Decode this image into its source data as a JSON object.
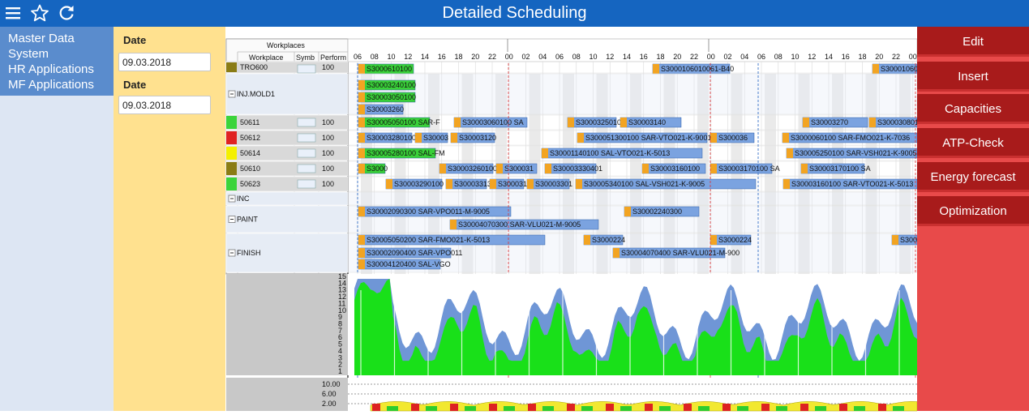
{
  "app": {
    "title": "Detailed Scheduling"
  },
  "toolbar": {
    "menu_icon": "menu-icon",
    "favorite_icon": "star-icon",
    "refresh_icon": "refresh-icon"
  },
  "sidebar": {
    "items": [
      {
        "label": "Master Data"
      },
      {
        "label": "System"
      },
      {
        "label": "HR Applications"
      },
      {
        "label": "MF Applications"
      }
    ]
  },
  "dates": {
    "from_label": "Date",
    "from_value": "09.03.2018",
    "to_label": "Date",
    "to_value": "09.03.2018"
  },
  "actions": [
    {
      "label": "Edit"
    },
    {
      "label": "Insert"
    },
    {
      "label": "Capacities"
    },
    {
      "label": "ATP-Check"
    },
    {
      "label": "Energy forecast"
    },
    {
      "label": "Optimization"
    }
  ],
  "grid": {
    "header_group": "Workplaces",
    "col_workplace": "Workplace",
    "col_symbol": "Symb",
    "col_perf": "Perform",
    "hours": [
      "06",
      "08",
      "10",
      "12",
      "14",
      "16",
      "18",
      "20",
      "22",
      "00",
      "02",
      "04",
      "06",
      "08",
      "10",
      "12",
      "14",
      "16",
      "18",
      "20",
      "22",
      "00",
      "02",
      "04",
      "06",
      "08",
      "10",
      "12",
      "14",
      "16",
      "18",
      "20",
      "22",
      "00"
    ],
    "rows": [
      {
        "id": "TRO600",
        "name": "TRO600",
        "status": "#8a7c15",
        "perf": "100",
        "y": 76,
        "h": 14,
        "bars": [
          {
            "s": 442,
            "e": 510,
            "c": "#39d039",
            "t": "S3000610100"
          },
          {
            "s": 805,
            "e": 900,
            "c": "#7ba3e0",
            "t": "S3000106010061-B40"
          },
          {
            "s": 1076,
            "e": 1131,
            "c": "#7ba3e0",
            "t": "S3000106010"
          }
        ]
      },
      {
        "id": "INJ.MOLD1",
        "name": "INJ.MOLD1",
        "status": "",
        "perf": "",
        "y": 91,
        "h": 50,
        "group": true,
        "bars": [
          {
            "s": 442,
            "e": 512,
            "c": "#39d039",
            "t": "S30003240100",
            "y": 8
          },
          {
            "s": 442,
            "e": 512,
            "c": "#39d039",
            "t": "S30003050100",
            "y": 23
          },
          {
            "s": 442,
            "e": 497,
            "c": "#7ba3e0",
            "t": "S30003260",
            "y": 38
          }
        ]
      },
      {
        "id": "50611",
        "name": "50611",
        "status": "#3bd43b",
        "perf": "100",
        "y": 142,
        "h": 18,
        "bars": [
          {
            "s": 442,
            "e": 530,
            "c": "#39d039",
            "t": "S30005050100 SAR-F"
          },
          {
            "s": 560,
            "e": 650,
            "c": "#7ba3e0",
            "t": "S30003060100 SA"
          },
          {
            "s": 700,
            "e": 760,
            "c": "#7ba3e0",
            "t": "S30003250101"
          },
          {
            "s": 765,
            "e": 840,
            "c": "#7ba3e0",
            "t": "S30003140"
          },
          {
            "s": 990,
            "e": 1070,
            "c": "#7ba3e0",
            "t": "S30003270"
          },
          {
            "s": 1072,
            "e": 1131,
            "c": "#7ba3e0",
            "t": "S30003080100"
          }
        ]
      },
      {
        "id": "50612",
        "name": "50612",
        "status": "#e02222",
        "perf": "100",
        "y": 161,
        "h": 18,
        "bars": [
          {
            "s": 442,
            "e": 508,
            "c": "#7ba3e0",
            "t": "S30003280100"
          },
          {
            "s": 512,
            "e": 552,
            "c": "#7ba3e0",
            "t": "S30003"
          },
          {
            "s": 556,
            "e": 610,
            "c": "#7ba3e0",
            "t": "S30003120"
          },
          {
            "s": 712,
            "e": 872,
            "c": "#7ba3e0",
            "t": "S300051300100 SAR-VTO021-K-9001"
          },
          {
            "s": 876,
            "e": 930,
            "c": "#7ba3e0",
            "t": "S300036"
          },
          {
            "s": 965,
            "e": 1131,
            "c": "#7ba3e0",
            "t": "S3000060100 SAR-FMO021-K-7036"
          }
        ]
      },
      {
        "id": "50614",
        "name": "50614",
        "status": "#f4f000",
        "perf": "100",
        "y": 180,
        "h": 18,
        "bars": [
          {
            "s": 442,
            "e": 537,
            "c": "#39d039",
            "t": "S30005280100 SAL-FM"
          },
          {
            "s": 668,
            "e": 866,
            "c": "#7ba3e0",
            "t": "S30001140100 SAL-VTO021-K-5013"
          },
          {
            "s": 970,
            "e": 1131,
            "c": "#7ba3e0",
            "t": "S30005250100 SAR-VSH021-K-9005"
          }
        ]
      },
      {
        "id": "50610",
        "name": "50610",
        "status": "#8a7c15",
        "perf": "100",
        "y": 199,
        "h": 18,
        "bars": [
          {
            "s": 442,
            "e": 475,
            "c": "#39d039",
            "t": "S3000"
          },
          {
            "s": 542,
            "e": 608,
            "c": "#7ba3e0",
            "t": "S30003260100"
          },
          {
            "s": 612,
            "e": 662,
            "c": "#7ba3e0",
            "t": "S300031"
          },
          {
            "s": 672,
            "e": 735,
            "c": "#7ba3e0",
            "t": "S30003330401"
          },
          {
            "s": 792,
            "e": 870,
            "c": "#7ba3e0",
            "t": "S30003160100"
          },
          {
            "s": 876,
            "e": 952,
            "c": "#7ba3e0",
            "t": "S30003170100 SA"
          },
          {
            "s": 988,
            "e": 1066,
            "c": "#7ba3e0",
            "t": "S30003170100 SA"
          }
        ]
      },
      {
        "id": "50623",
        "name": "50623",
        "status": "#3bd43b",
        "perf": "100",
        "y": 218,
        "h": 18,
        "bars": [
          {
            "s": 476,
            "e": 545,
            "c": "#7ba3e0",
            "t": "S30003290100"
          },
          {
            "s": 550,
            "e": 600,
            "c": "#7ba3e0",
            "t": "S30003313"
          },
          {
            "s": 604,
            "e": 646,
            "c": "#7ba3e0",
            "t": "S300031"
          },
          {
            "s": 650,
            "e": 702,
            "c": "#7ba3e0",
            "t": "S30003301"
          },
          {
            "s": 710,
            "e": 932,
            "c": "#7ba3e0",
            "t": "S30005340100 SAL-VSH021-K-9005"
          },
          {
            "s": 966,
            "e": 1131,
            "c": "#7ba3e0",
            "t": "S30003160100 SAR-VTO021-K-5013"
          }
        ]
      },
      {
        "id": "INC",
        "name": "INC",
        "status": "",
        "perf": "",
        "y": 237,
        "h": 16,
        "group": true,
        "bars": []
      },
      {
        "id": "PAINT",
        "name": "PAINT",
        "status": "",
        "perf": "",
        "y": 254,
        "h": 33,
        "group": true,
        "bars": [
          {
            "s": 442,
            "e": 630,
            "c": "#7ba3e0",
            "t": "S30002090300 SAR-VPO011-M-9005",
            "y": 1
          },
          {
            "s": 770,
            "e": 862,
            "c": "#7ba3e0",
            "t": "S30002240300",
            "y": 1
          },
          {
            "s": 555,
            "e": 738,
            "c": "#7ba3e0",
            "t": "S30004070300 SAR-VLU021-M-9005",
            "y": 17
          }
        ]
      },
      {
        "id": "FINISH",
        "name": "FINISH",
        "status": "",
        "perf": "",
        "y": 288,
        "h": 48,
        "group": true,
        "bars": [
          {
            "s": 442,
            "e": 672,
            "c": "#7ba3e0",
            "t": "S30005050200 SAR-FMO021-K-5013",
            "y": 2
          },
          {
            "s": 720,
            "e": 768,
            "c": "#7ba3e0",
            "t": "S3000224",
            "y": 2
          },
          {
            "s": 876,
            "e": 926,
            "c": "#7ba3e0",
            "t": "S3000224",
            "y": 2
          },
          {
            "s": 1100,
            "e": 1131,
            "c": "#7ba3e0",
            "t": "S3000",
            "y": 2
          },
          {
            "s": 442,
            "e": 556,
            "c": "#7ba3e0",
            "t": "S30002090400 SAR-VPO011",
            "y": 18
          },
          {
            "s": 756,
            "e": 894,
            "c": "#7ba3e0",
            "t": "S30004070400 SAR-VLU021-M-900",
            "y": 18
          },
          {
            "s": 442,
            "e": 543,
            "c": "#7ba3e0",
            "t": "S30004120400 SAL-VGO",
            "y": 32
          }
        ]
      }
    ]
  },
  "load_chart": {
    "y_ticks": [
      "15",
      "14",
      "13",
      "12",
      "11",
      "10",
      "9",
      "8",
      "7",
      "6",
      "5",
      "4",
      "3",
      "2",
      "1"
    ],
    "y_max": 15,
    "note": "capacity load histogram: blue = capacity, green = load"
  },
  "energy_chart": {
    "y_ticks": [
      "10.00",
      "6.00",
      "2.00"
    ]
  }
}
